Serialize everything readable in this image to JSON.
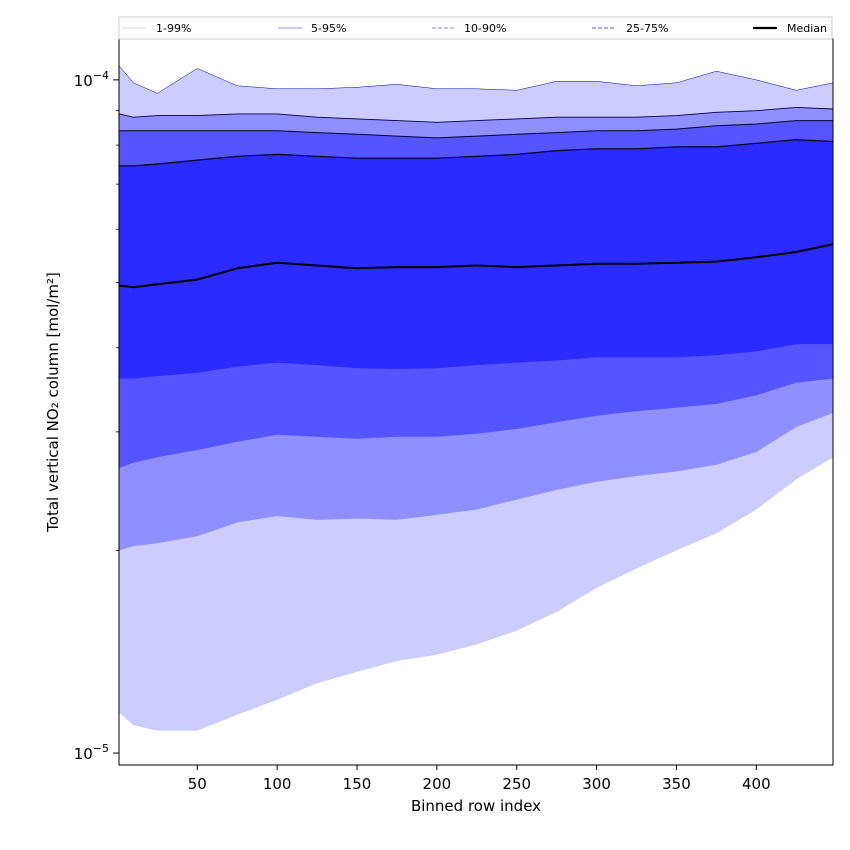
{
  "chart_data": {
    "type": "area",
    "title": "",
    "xlabel": "Binned row index",
    "ylabel": "Total vertical NO₂ column [mol/m²]",
    "xlim": [
      1,
      448
    ],
    "ylim": [
      9.6e-06,
      0.000115
    ],
    "yscale": "log",
    "xticks": [
      50,
      100,
      150,
      200,
      250,
      300,
      350,
      400
    ],
    "yticks": [
      {
        "value": 1e-05,
        "mantissa": "10",
        "exp": "−5"
      },
      {
        "value": 0.0001,
        "mantissa": "10",
        "exp": "−4"
      }
    ],
    "grid": false,
    "legend_position": "top",
    "legend": [
      {
        "label": "1-99%",
        "style": "solid",
        "color": "#d0d0ff"
      },
      {
        "label": "5-95%",
        "style": "solid",
        "color": "#9090ff"
      },
      {
        "label": "10-90%",
        "style": "dashed",
        "color": "#8080ff"
      },
      {
        "label": "25-75%",
        "style": "dashed",
        "color": "#5050ff"
      },
      {
        "label": "Median",
        "style": "solid",
        "color": "#000000"
      }
    ],
    "x": [
      1,
      10,
      25,
      50,
      75,
      100,
      125,
      150,
      175,
      200,
      225,
      250,
      275,
      300,
      325,
      350,
      375,
      400,
      425,
      448
    ],
    "series": [
      {
        "name": "1-99%",
        "color": "#ccccff",
        "lower": [
          1.15e-05,
          1.1e-05,
          1.08e-05,
          1.08e-05,
          1.14e-05,
          1.2e-05,
          1.27e-05,
          1.32e-05,
          1.37e-05,
          1.4e-05,
          1.45e-05,
          1.52e-05,
          1.62e-05,
          1.76e-05,
          1.88e-05,
          2e-05,
          2.12e-05,
          2.3e-05,
          2.55e-05,
          2.75e-05
        ],
        "upper": [
          0.000105,
          9.9e-05,
          9.55e-05,
          0.000104,
          9.8e-05,
          9.7e-05,
          9.7e-05,
          9.75e-05,
          9.85e-05,
          9.7e-05,
          9.7e-05,
          9.65e-05,
          9.95e-05,
          9.95e-05,
          9.8e-05,
          9.9e-05,
          0.000103,
          0.0001,
          9.65e-05,
          9.9e-05
        ]
      },
      {
        "name": "5-95%",
        "color": "#8f8fff",
        "lower": [
          2e-05,
          2.03e-05,
          2.05e-05,
          2.1e-05,
          2.2e-05,
          2.25e-05,
          2.22e-05,
          2.23e-05,
          2.22e-05,
          2.26e-05,
          2.3e-05,
          2.38e-05,
          2.46e-05,
          2.53e-05,
          2.58e-05,
          2.62e-05,
          2.68e-05,
          2.8e-05,
          3.05e-05,
          3.2e-05
        ],
        "upper": [
          8.9e-05,
          8.8e-05,
          8.85e-05,
          8.85e-05,
          8.9e-05,
          8.9e-05,
          8.8e-05,
          8.75e-05,
          8.7e-05,
          8.65e-05,
          8.7e-05,
          8.75e-05,
          8.8e-05,
          8.8e-05,
          8.8e-05,
          8.85e-05,
          8.95e-05,
          9e-05,
          9.1e-05,
          9.05e-05
        ]
      },
      {
        "name": "10-90%",
        "color": "#5555ff",
        "lower": [
          2.65e-05,
          2.7e-05,
          2.75e-05,
          2.82e-05,
          2.9e-05,
          2.97e-05,
          2.95e-05,
          2.93e-05,
          2.95e-05,
          2.95e-05,
          2.98e-05,
          3.03e-05,
          3.1e-05,
          3.17e-05,
          3.22e-05,
          3.26e-05,
          3.3e-05,
          3.4e-05,
          3.55e-05,
          3.6e-05
        ],
        "upper": [
          8.4e-05,
          8.4e-05,
          8.4e-05,
          8.4e-05,
          8.4e-05,
          8.4e-05,
          8.35e-05,
          8.3e-05,
          8.25e-05,
          8.2e-05,
          8.25e-05,
          8.3e-05,
          8.35e-05,
          8.4e-05,
          8.4e-05,
          8.45e-05,
          8.55e-05,
          8.6e-05,
          8.7e-05,
          8.7e-05
        ]
      },
      {
        "name": "25-75%",
        "color": "#2b2bff",
        "lower": [
          3.6e-05,
          3.6e-05,
          3.63e-05,
          3.67e-05,
          3.75e-05,
          3.8e-05,
          3.77e-05,
          3.73e-05,
          3.72e-05,
          3.73e-05,
          3.77e-05,
          3.8e-05,
          3.83e-05,
          3.87e-05,
          3.87e-05,
          3.87e-05,
          3.9e-05,
          3.95e-05,
          4.05e-05,
          4.05e-05
        ],
        "upper": [
          7.45e-05,
          7.45e-05,
          7.5e-05,
          7.6e-05,
          7.7e-05,
          7.75e-05,
          7.7e-05,
          7.65e-05,
          7.65e-05,
          7.65e-05,
          7.7e-05,
          7.75e-05,
          7.85e-05,
          7.9e-05,
          7.9e-05,
          7.95e-05,
          7.95e-05,
          8.05e-05,
          8.15e-05,
          8.1e-05
        ]
      },
      {
        "name": "Median",
        "color": "#000000",
        "values": [
          4.95e-05,
          4.92e-05,
          4.97e-05,
          5.05e-05,
          5.25e-05,
          5.35e-05,
          5.3e-05,
          5.25e-05,
          5.27e-05,
          5.27e-05,
          5.3e-05,
          5.27e-05,
          5.3e-05,
          5.33e-05,
          5.33e-05,
          5.35e-05,
          5.37e-05,
          5.45e-05,
          5.55e-05,
          5.7e-05
        ]
      }
    ]
  }
}
